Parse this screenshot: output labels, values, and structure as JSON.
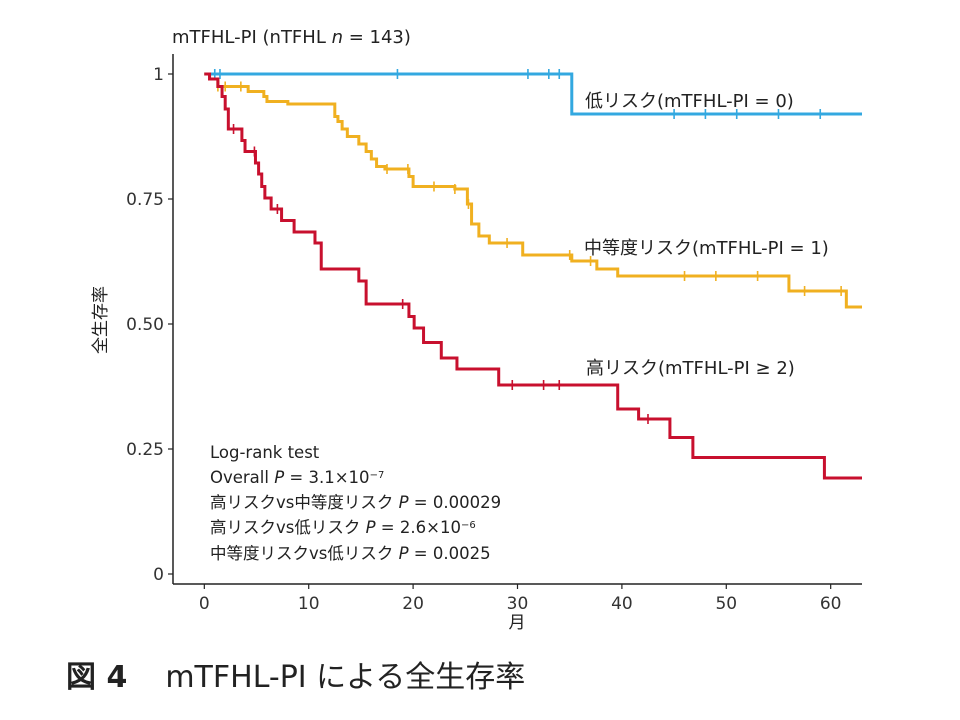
{
  "chart_data": {
    "type": "line",
    "subtype": "kaplan-meier",
    "title_parts": [
      "mTFHL-PI (nTFHL ",
      "n",
      " = 143)"
    ],
    "xlabel": "月",
    "ylabel": "全生存率",
    "xlim": [
      -3,
      63
    ],
    "ylim": [
      -0.02,
      1.04
    ],
    "x_ticks": [
      0,
      10,
      20,
      30,
      40,
      50,
      60
    ],
    "x_tick_labels": [
      "0",
      "10",
      "20",
      "30",
      "40",
      "50",
      "60"
    ],
    "y_ticks": [
      0,
      0.25,
      0.5,
      0.75,
      1
    ],
    "y_tick_labels": [
      "0",
      "0.25",
      "0.50",
      "0.75",
      "1"
    ],
    "grid": false,
    "series": [
      {
        "name": "低リスク(mTFHL-PI = 0)",
        "color": "#33a8e0",
        "steps": [
          [
            0,
            1.0
          ],
          [
            35.2,
            0.92
          ],
          [
            63,
            0.92
          ]
        ],
        "censor_x": [
          1,
          1.5,
          18.5,
          31,
          33,
          34,
          45,
          48,
          51,
          55,
          59
        ]
      },
      {
        "name": "中等度リスク(mTFHL-PI = 1)",
        "color": "#f0b020",
        "steps": [
          [
            0,
            1.0
          ],
          [
            0.5,
            0.99
          ],
          [
            1.3,
            0.975
          ],
          [
            4.2,
            0.965
          ],
          [
            5.7,
            0.955
          ],
          [
            6,
            0.945
          ],
          [
            8,
            0.94
          ],
          [
            12.5,
            0.915
          ],
          [
            12.8,
            0.905
          ],
          [
            13.2,
            0.89
          ],
          [
            13.7,
            0.875
          ],
          [
            14.8,
            0.86
          ],
          [
            15.5,
            0.845
          ],
          [
            16,
            0.83
          ],
          [
            16.5,
            0.815
          ],
          [
            17.3,
            0.81
          ],
          [
            19.6,
            0.795
          ],
          [
            20,
            0.775
          ],
          [
            24,
            0.77
          ],
          [
            25.2,
            0.74
          ],
          [
            25.6,
            0.7
          ],
          [
            26.3,
            0.676
          ],
          [
            27.3,
            0.662
          ],
          [
            30.5,
            0.638
          ],
          [
            35.2,
            0.626
          ],
          [
            37.6,
            0.61
          ],
          [
            39.6,
            0.596
          ],
          [
            56,
            0.566
          ],
          [
            61.5,
            0.534
          ],
          [
            63,
            0.534
          ]
        ],
        "censor_x": [
          1.3,
          2,
          3.5,
          17.5,
          19.5,
          22,
          24,
          25.3,
          29,
          35,
          37,
          46,
          49,
          53,
          57.5,
          61
        ]
      },
      {
        "name": "高リスク(mTFHL-PI ≥ 2)",
        "color": "#c8102e",
        "steps": [
          [
            0,
            1.0
          ],
          [
            0.5,
            0.99
          ],
          [
            1.3,
            0.975
          ],
          [
            1.7,
            0.955
          ],
          [
            2,
            0.93
          ],
          [
            2.3,
            0.89
          ],
          [
            3.6,
            0.867
          ],
          [
            3.9,
            0.845
          ],
          [
            4.9,
            0.822
          ],
          [
            5.2,
            0.8
          ],
          [
            5.5,
            0.775
          ],
          [
            5.8,
            0.752
          ],
          [
            6.4,
            0.73
          ],
          [
            7.4,
            0.707
          ],
          [
            8.6,
            0.684
          ],
          [
            10.6,
            0.662
          ],
          [
            11.2,
            0.61
          ],
          [
            14.8,
            0.586
          ],
          [
            15.5,
            0.54
          ],
          [
            19.6,
            0.515
          ],
          [
            20.1,
            0.492
          ],
          [
            21,
            0.463
          ],
          [
            22.7,
            0.432
          ],
          [
            24.2,
            0.41
          ],
          [
            28.2,
            0.378
          ],
          [
            39.6,
            0.33
          ],
          [
            41.6,
            0.31
          ],
          [
            44.6,
            0.273
          ],
          [
            46.8,
            0.233
          ],
          [
            59.4,
            0.192
          ],
          [
            63,
            0.192
          ]
        ],
        "censor_x": [
          2.8,
          4.8,
          7,
          19,
          29.5,
          32.5,
          34,
          42.5
        ]
      }
    ],
    "annotation_lines": [
      [
        "Log-rank test"
      ],
      [
        "Overall ",
        "P",
        " = 3.1×10",
        "−7",
        ""
      ],
      [
        "高リスクvs中等度リスク ",
        "P",
        " = 0.00029"
      ],
      [
        "高リスクvs低リスク ",
        "P",
        " = 2.6×10",
        "−6",
        ""
      ],
      [
        "中等度リスクvs低リスク ",
        "P",
        " = 0.0025"
      ]
    ]
  },
  "caption": {
    "figure_number": "図 4",
    "text": "mTFHL-PI による全生存率"
  }
}
